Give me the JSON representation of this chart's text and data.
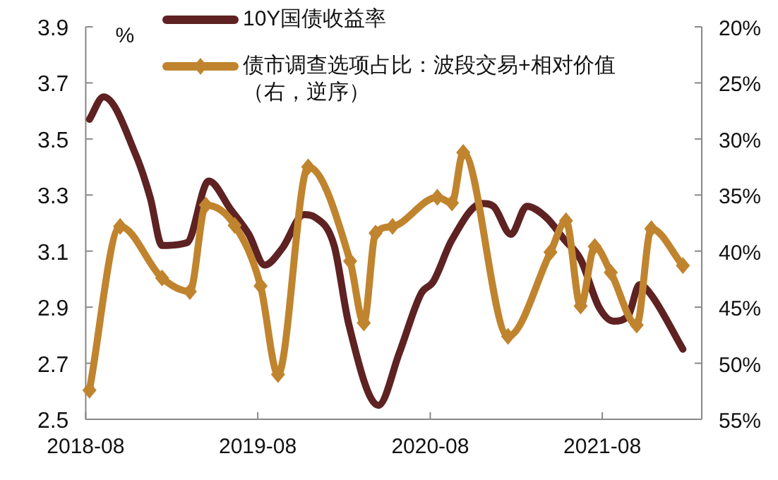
{
  "chart_data": {
    "type": "line",
    "ylabel": "%",
    "legend": "top",
    "grid": false,
    "xlim": [
      "2018-08-01",
      "2022-02-28"
    ],
    "xticks": [
      "2018-08",
      "2019-08",
      "2020-08",
      "2021-08"
    ],
    "ylim": [
      2.5,
      3.9
    ],
    "yticks": [
      2.5,
      2.7,
      2.9,
      3.1,
      3.3,
      3.5,
      3.7,
      3.9
    ],
    "y2lim": [
      55,
      20
    ],
    "y2ticks": [
      {
        "value": 55,
        "label": "55%"
      },
      {
        "value": 50,
        "label": "50%"
      },
      {
        "value": 45,
        "label": "45%"
      },
      {
        "value": 40,
        "label": "40%"
      },
      {
        "value": 35,
        "label": "35%"
      },
      {
        "value": 30,
        "label": "30%"
      },
      {
        "value": 25,
        "label": "25%"
      },
      {
        "value": 20,
        "label": "20%"
      }
    ],
    "series": [
      {
        "name": "10Y国债收益率",
        "color": "#5e2222",
        "marker": "none",
        "x": [
          "2018-08-09",
          "2018-09-08",
          "2018-11-16",
          "2018-12-16",
          "2019-01-10",
          "2019-03-04",
          "2019-04-19",
          "2019-06-04",
          "2019-07-13",
          "2019-08-16",
          "2019-09-22",
          "2019-11-07",
          "2019-12-01",
          "2020-01-10",
          "2020-02-10",
          "2020-04-13",
          "2020-05-28",
          "2020-07-13",
          "2020-08-07",
          "2020-09-16",
          "2020-11-19",
          "2020-12-13",
          "2021-01-19",
          "2021-02-22",
          "2021-04-04",
          "2021-05-13",
          "2021-06-16",
          "2021-07-25",
          "2021-08-25",
          "2021-09-25",
          "2021-10-19",
          "2021-11-10",
          "2022-01-19"
        ],
        "values": [
          3.57,
          3.65,
          3.44,
          3.29,
          3.12,
          3.13,
          3.35,
          3.25,
          3.16,
          3.05,
          3.11,
          3.23,
          3.22,
          3.12,
          2.84,
          2.55,
          2.74,
          2.95,
          2.99,
          3.14,
          3.27,
          3.26,
          3.16,
          3.26,
          3.22,
          3.14,
          3.07,
          2.9,
          2.85,
          2.87,
          2.98,
          2.95,
          2.75
        ]
      },
      {
        "name": "债市调查选项占比：波段交易+相对价值（右，逆序）",
        "color": "#c0842e",
        "axis": "y2",
        "marker": "diamond",
        "x": [
          "2018-08-09",
          "2018-10-13",
          "2019-01-10",
          "2019-03-10",
          "2019-04-13",
          "2019-06-13",
          "2019-08-07",
          "2019-09-13",
          "2019-11-16",
          "2020-02-13",
          "2020-03-13",
          "2020-04-07",
          "2020-05-13",
          "2020-08-16",
          "2020-09-16",
          "2020-10-10",
          "2021-01-13",
          "2021-04-13",
          "2021-05-16",
          "2021-06-16",
          "2021-07-16",
          "2021-08-19",
          "2021-10-13",
          "2021-11-13",
          "2022-01-19"
        ],
        "values": [
          52.4,
          37.8,
          42.4,
          43.6,
          35.9,
          37.7,
          43.1,
          51.0,
          32.5,
          40.9,
          46.4,
          38.4,
          37.8,
          35.2,
          35.7,
          31.2,
          47.6,
          40.1,
          37.3,
          44.9,
          39.6,
          41.9,
          46.6,
          38.0,
          41.3
        ]
      }
    ]
  }
}
